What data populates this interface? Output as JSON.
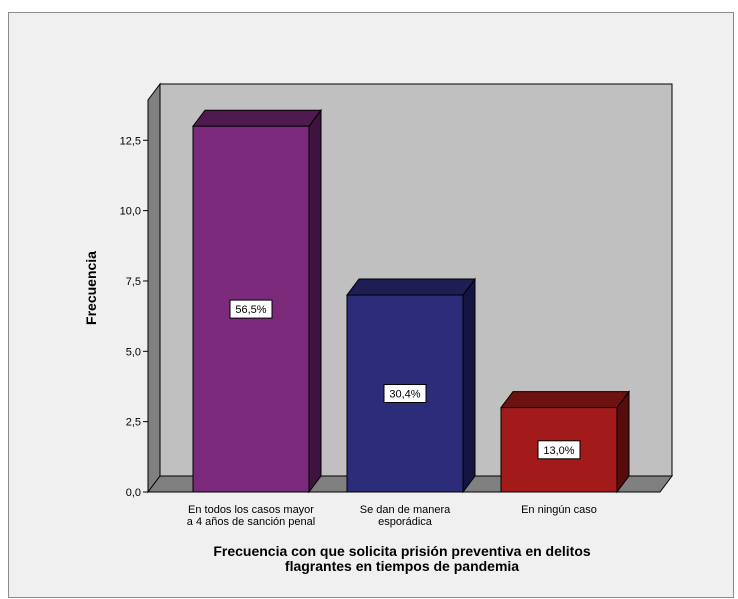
{
  "chart_data": {
    "type": "bar",
    "title": "",
    "xlabel_lines": [
      "Frecuencia con que solicita prisión preventiva en delitos",
      "flagrantes en tiempos de pandemia"
    ],
    "ylabel": "Frecuencia",
    "ylim": [
      0,
      14.5
    ],
    "yticks": [
      "0,0",
      "2,5",
      "5,0",
      "7,5",
      "10,0",
      "12,5"
    ],
    "ytick_values": [
      0,
      2.5,
      5,
      7.5,
      10,
      12.5
    ],
    "categories": [
      [
        "En todos los casos mayor",
        "a 4 años de sanción penal"
      ],
      [
        "Se dan de manera",
        "esporádica"
      ],
      [
        "En ningún caso"
      ]
    ],
    "values": [
      13,
      7,
      3
    ],
    "data_labels": [
      "56,5%",
      "30,4%",
      "13,0%"
    ],
    "colors": [
      {
        "front": "#7b2a7b",
        "top": "#4f1b4f",
        "side": "#3d143d"
      },
      {
        "front": "#2c2c7a",
        "top": "#1e1e55",
        "side": "#141440"
      },
      {
        "front": "#a21a1a",
        "top": "#6e1111",
        "side": "#560c0c"
      }
    ],
    "plot_background": "#c0c0c0",
    "grid": false,
    "legend": "none"
  }
}
